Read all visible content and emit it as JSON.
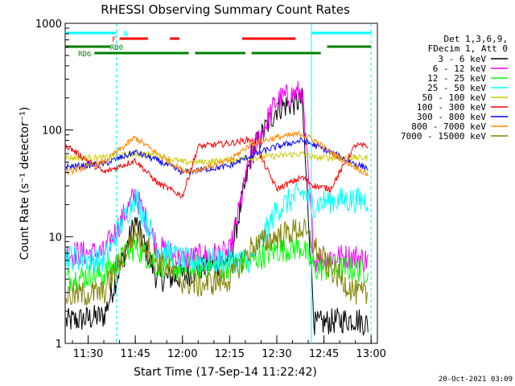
{
  "chart_data": {
    "type": "line",
    "title": "RHESSI Observing Summary Count Rates",
    "xlabel": "Start Time (17-Sep-14 11:22:42)",
    "ylabel": "Count Rate (s⁻¹ detector⁻¹)",
    "y_scale": "log",
    "ylim": [
      1,
      1000
    ],
    "xlim": [
      "11:22:42",
      "13:02:00"
    ],
    "x_ticks": [
      "11:30",
      "11:45",
      "12:00",
      "12:15",
      "12:30",
      "12:45",
      "13:00"
    ],
    "y_ticks": [
      "1",
      "10",
      "100",
      "1000"
    ],
    "footer_date": "20-Oct-2021 03:09",
    "legend_header": [
      "Det 1,3,6,9,",
      "FDecim 1, Att 0"
    ],
    "legend_placement": "right",
    "series": [
      {
        "name": "3 - 6 keV",
        "color": "#000000",
        "x": [
          "11:23",
          "11:35",
          "11:45",
          "11:52",
          "12:00",
          "12:05",
          "12:15",
          "12:22",
          "12:30",
          "12:38",
          "12:42",
          "12:47",
          "12:55",
          "12:59"
        ],
        "values": [
          1.6,
          1.8,
          14,
          4,
          4.2,
          5,
          6,
          60,
          160,
          190,
          1.5,
          1.6,
          1.7,
          1.5
        ]
      },
      {
        "name": "6 - 12 keV",
        "color": "#ff00ff",
        "x": [
          "11:23",
          "11:35",
          "11:45",
          "11:52",
          "12:00",
          "12:05",
          "12:15",
          "12:22",
          "12:30",
          "12:38",
          "12:42",
          "12:47",
          "12:55",
          "12:59"
        ],
        "values": [
          7,
          7,
          25,
          8,
          6,
          6.5,
          7,
          60,
          190,
          230,
          6,
          6.5,
          6.5,
          6
        ]
      },
      {
        "name": "12 - 25 keV",
        "color": "#00ff00",
        "x": [
          "11:23",
          "11:35",
          "11:45",
          "11:52",
          "12:00",
          "12:05",
          "12:15",
          "12:22",
          "12:30",
          "12:38",
          "12:42",
          "12:47",
          "12:55",
          "12:59"
        ],
        "values": [
          4,
          4.5,
          8,
          5.5,
          5,
          5.2,
          5.3,
          6,
          7.5,
          8,
          5,
          5,
          5,
          4.8
        ]
      },
      {
        "name": "25 - 50 keV",
        "color": "#00ffff",
        "x": [
          "11:23",
          "11:35",
          "11:45",
          "11:52",
          "12:00",
          "12:05",
          "12:15",
          "12:22",
          "12:30",
          "12:38",
          "12:42",
          "12:47",
          "12:55",
          "12:59"
        ],
        "values": [
          6.5,
          6,
          24,
          8,
          6,
          6,
          6,
          6,
          18,
          26,
          20,
          22,
          22,
          22
        ]
      },
      {
        "name": "50 - 100 keV",
        "color": "#cccc00",
        "x": [
          "11:23",
          "11:35",
          "11:45",
          "11:52",
          "12:00",
          "12:05",
          "12:15",
          "12:22",
          "12:30",
          "12:38",
          "12:42",
          "12:47",
          "12:55",
          "12:59"
        ],
        "values": [
          55,
          55,
          60,
          58,
          50,
          50,
          52,
          55,
          57,
          60,
          55,
          55,
          55,
          55
        ]
      },
      {
        "name": "100 - 300 keV",
        "color": "#ff0000",
        "x": [
          "11:23",
          "11:35",
          "11:45",
          "11:52",
          "12:00",
          "12:05",
          "12:15",
          "12:22",
          "12:30",
          "12:38",
          "12:42",
          "12:47",
          "12:55",
          "12:59"
        ],
        "values": [
          72,
          40,
          52,
          32,
          24,
          70,
          75,
          82,
          28,
          36,
          30,
          28,
          72,
          70
        ]
      },
      {
        "name": "300 - 800 keV",
        "color": "#0000ff",
        "x": [
          "11:23",
          "11:35",
          "11:45",
          "11:52",
          "12:00",
          "12:05",
          "12:15",
          "12:22",
          "12:30",
          "12:38",
          "12:42",
          "12:47",
          "12:55",
          "12:59"
        ],
        "values": [
          45,
          48,
          62,
          52,
          40,
          42,
          46,
          58,
          70,
          80,
          72,
          62,
          48,
          44
        ]
      },
      {
        "name": "800 - 7000 keV",
        "color": "#ff8800",
        "x": [
          "11:23",
          "11:35",
          "11:45",
          "11:52",
          "12:00",
          "12:05",
          "12:15",
          "12:22",
          "12:30",
          "12:38",
          "12:42",
          "12:47",
          "12:55",
          "12:59"
        ],
        "values": [
          40,
          50,
          85,
          60,
          42,
          42,
          52,
          75,
          85,
          92,
          80,
          62,
          45,
          38
        ]
      },
      {
        "name": "7000 - 15000 keV",
        "color": "#808000",
        "x": [
          "11:23",
          "11:35",
          "11:45",
          "11:52",
          "12:00",
          "12:05",
          "12:15",
          "12:22",
          "12:30",
          "12:38",
          "12:42",
          "12:47",
          "12:55",
          "12:59"
        ],
        "values": [
          2.8,
          3,
          11,
          6,
          3.8,
          3.5,
          4,
          8,
          10,
          12,
          8,
          5,
          3,
          2.8
        ]
      }
    ],
    "state_bars": [
      {
        "label": "N",
        "color": "#00ffff",
        "segments": [
          [
            "11:22:42",
            "11:39"
          ],
          [
            "12:41",
            "13:00"
          ]
        ]
      },
      {
        "label": "F",
        "color": "#ff0000",
        "segments": [
          [
            "11:40",
            "11:49"
          ],
          [
            "11:56",
            "11:59"
          ],
          [
            "12:19",
            "12:36"
          ]
        ]
      },
      {
        "label": "RD0",
        "color": "#008000",
        "segments": [
          [
            "11:22:42",
            "11:37"
          ],
          [
            "12:46",
            "13:00"
          ]
        ]
      },
      {
        "label": "RD6",
        "color": "#008000",
        "segments": [
          [
            "11:32",
            "12:02"
          ],
          [
            "12:04",
            "12:20"
          ],
          [
            "12:22",
            "12:44"
          ]
        ]
      }
    ],
    "grid": false
  }
}
